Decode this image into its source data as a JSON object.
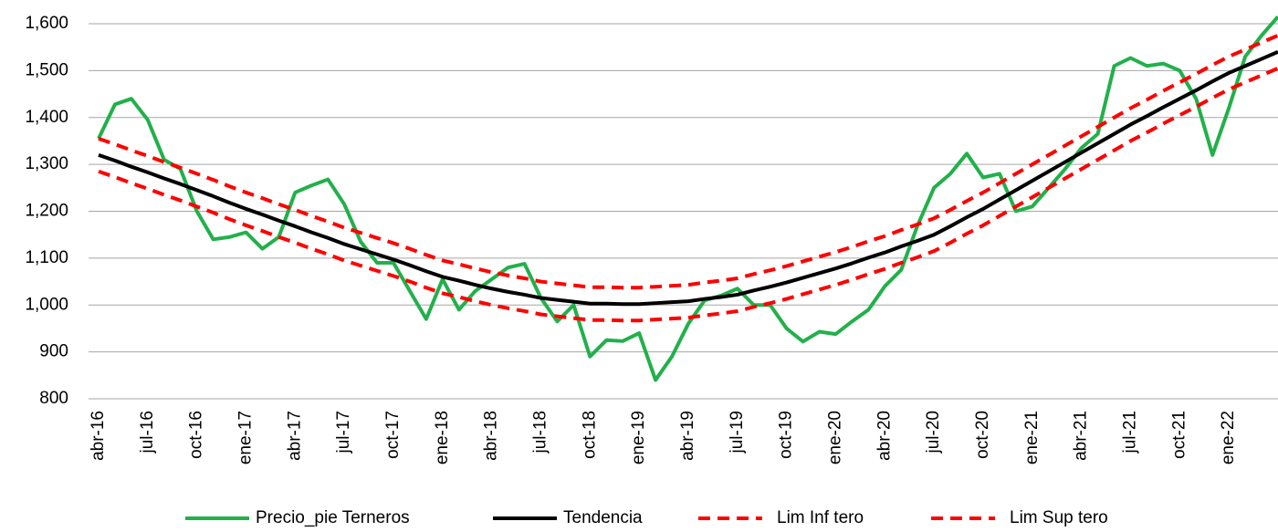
{
  "chart_data": {
    "type": "line",
    "categories": [
      "abr-16",
      null,
      null,
      "jul-16",
      null,
      null,
      "oct-16",
      null,
      null,
      "ene-17",
      null,
      null,
      "abr-17",
      null,
      null,
      "jul-17",
      null,
      null,
      "oct-17",
      null,
      null,
      "ene-18",
      null,
      null,
      "abr-18",
      null,
      null,
      "jul-18",
      null,
      null,
      "oct-18",
      null,
      null,
      "ene-19",
      null,
      null,
      "abr-19",
      null,
      null,
      "jul-19",
      null,
      null,
      "oct-19",
      null,
      null,
      "ene-20",
      null,
      null,
      "abr-20",
      null,
      null,
      "jul-20",
      null,
      null,
      "oct-20",
      null,
      null,
      "ene-21",
      null,
      null,
      "abr-21",
      null,
      null,
      "jul-21",
      null,
      null,
      "oct-21",
      null,
      null,
      "ene-22",
      null,
      null,
      null
    ],
    "ylim": [
      800,
      1600
    ],
    "yticks": [
      800,
      900,
      {
        "value": 1000,
        "label": "1,000"
      },
      {
        "value": 1100,
        "label": "1,100"
      },
      {
        "value": 1200,
        "label": "1,200"
      },
      {
        "value": 1300,
        "label": "1,300"
      },
      {
        "value": 1400,
        "label": "1,400"
      },
      {
        "value": 1500,
        "label": "1,500"
      },
      {
        "value": 1600,
        "label": "1,600"
      }
    ],
    "grid": true,
    "legend": "bottom",
    "series": [
      {
        "name": "Precio_pie Terneros",
        "color": "#22b04b",
        "style": "solid",
        "values": [
          1355,
          1428,
          1440,
          1395,
          1310,
          1290,
          1200,
          1140,
          1145,
          1155,
          1120,
          1145,
          1240,
          1255,
          1268,
          1215,
          1135,
          1090,
          1090,
          1030,
          970,
          1055,
          990,
          1030,
          1055,
          1080,
          1088,
          1015,
          965,
          1000,
          890,
          925,
          923,
          940,
          840,
          890,
          960,
          1010,
          1020,
          1035,
          1000,
          1000,
          950,
          922,
          943,
          938,
          965,
          990,
          1040,
          1075,
          1170,
          1250,
          1280,
          1323,
          1272,
          1280,
          1200,
          1210,
          1250,
          1290,
          1335,
          1365,
          1510,
          1527,
          1510,
          1515,
          1500,
          1440,
          1320,
          1420,
          1530,
          1575,
          1615
        ]
      },
      {
        "name": "Tendencia",
        "color": "#000000",
        "style": "solid",
        "values": [
          1320,
          1308,
          1295,
          1283,
          1270,
          1258,
          1245,
          1232,
          1218,
          1205,
          1193,
          1180,
          1168,
          1155,
          1143,
          1130,
          1119,
          1108,
          1097,
          1085,
          1072,
          1060,
          1052,
          1043,
          1035,
          1028,
          1022,
          1015,
          1011,
          1007,
          1003,
          1003,
          1002,
          1002,
          1004,
          1006,
          1008,
          1013,
          1017,
          1022,
          1031,
          1039,
          1048,
          1058,
          1068,
          1078,
          1089,
          1101,
          1112,
          1125,
          1137,
          1150,
          1168,
          1187,
          1205,
          1225,
          1245,
          1265,
          1285,
          1305,
          1325,
          1345,
          1365,
          1385,
          1403,
          1422,
          1440,
          1458,
          1477,
          1495,
          1510,
          1525,
          1540
        ]
      },
      {
        "name": "Lim Inf tero",
        "color": "#ff0000",
        "style": "dashed",
        "values": [
          1285,
          1273,
          1260,
          1248,
          1235,
          1223,
          1210,
          1197,
          1183,
          1170,
          1158,
          1145,
          1133,
          1120,
          1108,
          1095,
          1084,
          1073,
          1062,
          1050,
          1037,
          1025,
          1017,
          1008,
          1000,
          993,
          987,
          980,
          976,
          972,
          968,
          968,
          967,
          967,
          969,
          971,
          973,
          978,
          982,
          987,
          996,
          1004,
          1013,
          1023,
          1033,
          1043,
          1054,
          1066,
          1077,
          1090,
          1102,
          1115,
          1133,
          1152,
          1170,
          1190,
          1210,
          1230,
          1250,
          1270,
          1290,
          1310,
          1330,
          1350,
          1368,
          1387,
          1405,
          1423,
          1442,
          1460,
          1475,
          1490,
          1505
        ]
      },
      {
        "name": "Lim Sup tero",
        "color": "#ff0000",
        "style": "dashed",
        "values": [
          1355,
          1343,
          1330,
          1318,
          1305,
          1293,
          1280,
          1267,
          1253,
          1240,
          1228,
          1215,
          1203,
          1190,
          1178,
          1165,
          1154,
          1143,
          1132,
          1120,
          1107,
          1095,
          1087,
          1078,
          1070,
          1063,
          1057,
          1050,
          1046,
          1042,
          1038,
          1038,
          1037,
          1037,
          1039,
          1041,
          1043,
          1048,
          1052,
          1057,
          1066,
          1074,
          1083,
          1093,
          1103,
          1113,
          1124,
          1136,
          1147,
          1160,
          1172,
          1185,
          1203,
          1222,
          1240,
          1260,
          1280,
          1300,
          1320,
          1340,
          1360,
          1380,
          1400,
          1420,
          1438,
          1457,
          1475,
          1493,
          1512,
          1530,
          1545,
          1560,
          1575
        ]
      }
    ]
  }
}
